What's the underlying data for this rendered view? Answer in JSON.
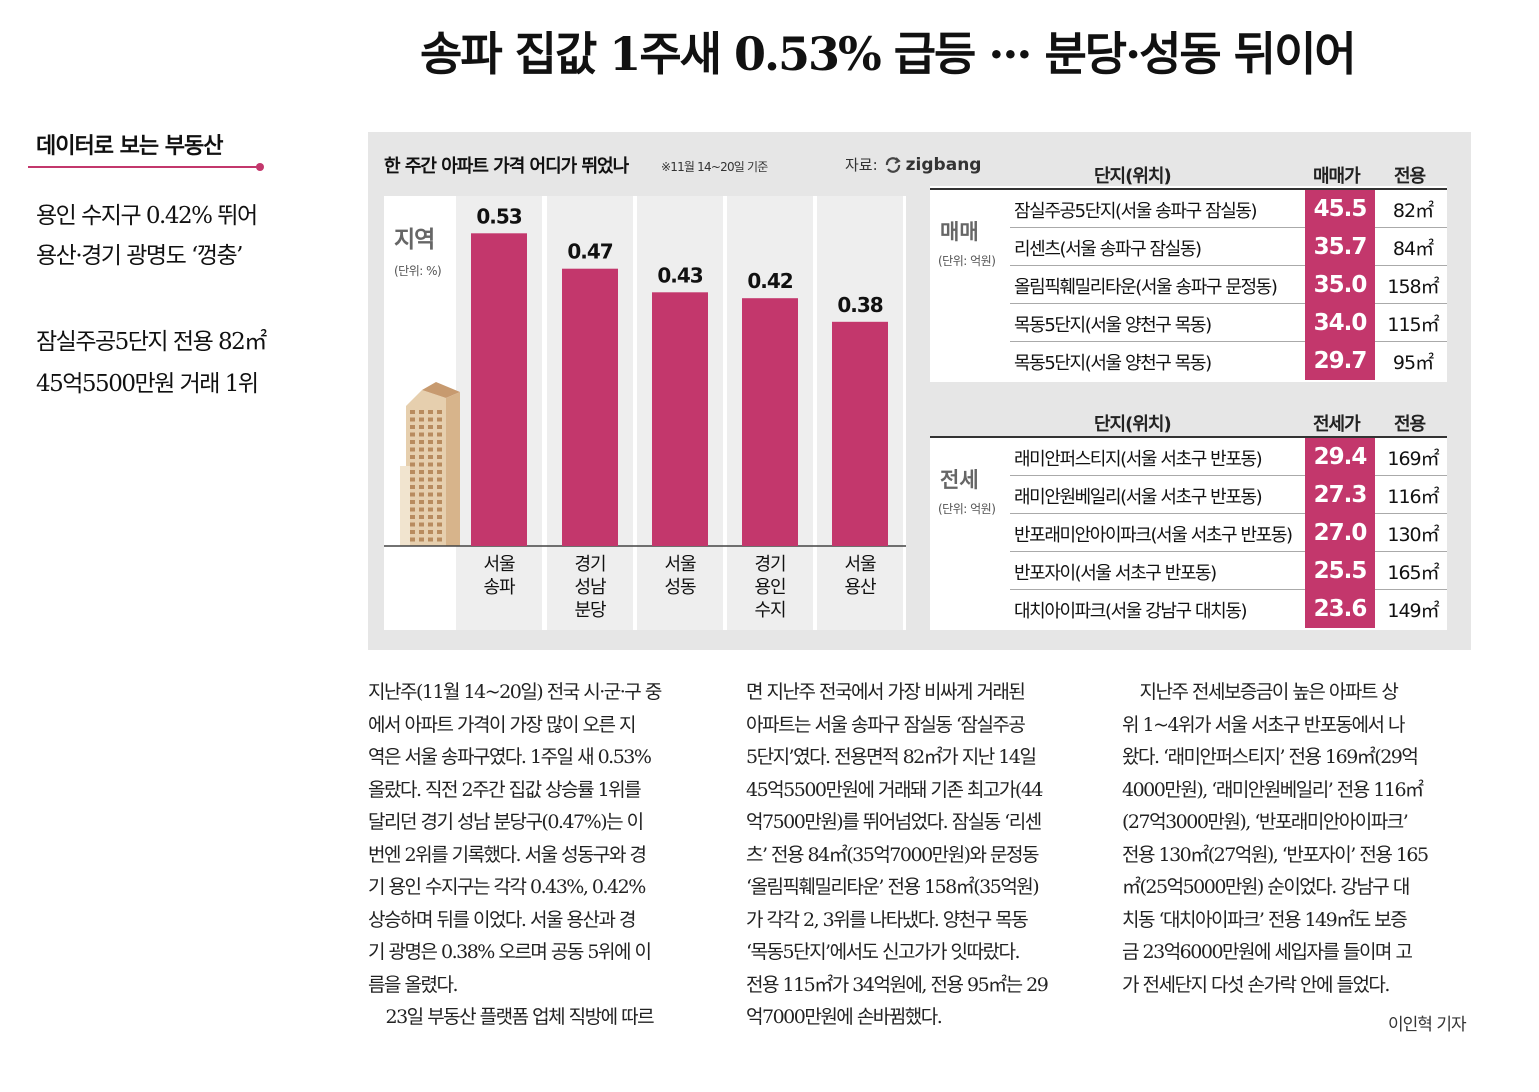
{
  "headline": "송파 집값 1주새 0.53% 급등 ··· 분당·성동 뒤이어",
  "section_tag": "데이터로 보는 부동산",
  "subheads": [
    "용인 수지구 0.42% 뛰어",
    "용산·경기 광명도 ‘껑충’",
    "잠실주공5단지 전용 82㎡",
    "45억5500만원 거래 1위"
  ],
  "graphic": {
    "title": "한 주간 아파트 가격 어디가 뛰었나",
    "date_note": "※11월 14~20일 기준",
    "source_label": "자료:",
    "source_brand": "zigbang"
  },
  "chart_data": {
    "type": "bar",
    "title": "지역",
    "unit": "(단위: %)",
    "categories": [
      "서울\n송파",
      "경기\n성남\n분당",
      "서울\n성동",
      "경기\n용인\n수지",
      "서울\n용산"
    ],
    "values": [
      0.53,
      0.47,
      0.43,
      0.42,
      0.38
    ],
    "value_labels": [
      "0.53",
      "0.47",
      "0.43",
      "0.42",
      "0.38"
    ],
    "bar_color": "#c3376c"
  },
  "sale_table": {
    "category": "매매",
    "unit": "(단위: 억원)",
    "headers": [
      "단지(위치)",
      "매매가",
      "전용"
    ],
    "rows": [
      {
        "name": "잠실주공5단지(서울 송파구 잠실동)",
        "price": "45.5",
        "area": "82㎡"
      },
      {
        "name": "리센츠(서울 송파구 잠실동)",
        "price": "35.7",
        "area": "84㎡"
      },
      {
        "name": "올림픽훼밀리타운(서울 송파구 문정동)",
        "price": "35.0",
        "area": "158㎡"
      },
      {
        "name": "목동5단지(서울 양천구 목동)",
        "price": "34.0",
        "area": "115㎡"
      },
      {
        "name": "목동5단지(서울 양천구 목동)",
        "price": "29.7",
        "area": "95㎡"
      }
    ]
  },
  "jeonse_table": {
    "category": "전세",
    "unit": "(단위: 억원)",
    "headers": [
      "단지(위치)",
      "전세가",
      "전용"
    ],
    "rows": [
      {
        "name": "래미안퍼스티지(서울 서초구 반포동)",
        "price": "29.4",
        "area": "169㎡"
      },
      {
        "name": "래미안원베일리(서울 서초구 반포동)",
        "price": "27.3",
        "area": "116㎡"
      },
      {
        "name": "반포래미안아이파크(서울 서초구 반포동)",
        "price": "27.0",
        "area": "130㎡"
      },
      {
        "name": "반포자이(서울 서초구 반포동)",
        "price": "25.5",
        "area": "165㎡"
      },
      {
        "name": "대치아이파크(서울 강남구 대치동)",
        "price": "23.6",
        "area": "149㎡"
      }
    ]
  },
  "body": {
    "col1": [
      "지난주(11월 14~20일) 전국 시·군·구 중",
      "에서 아파트 가격이 가장 많이 오른 지",
      "역은 서울 송파구였다. 1주일 새 0.53%",
      "올랐다. 직전 2주간 집값 상승률 1위를",
      "달리던 경기 성남 분당구(0.47%)는 이",
      "번엔 2위를 기록했다. 서울 성동구와 경",
      "기 용인 수지구는 각각 0.43%, 0.42%",
      "상승하며 뒤를 이었다. 서울 용산과 경",
      "기 광명은 0.38% 오르며 공동 5위에 이",
      "름을 올렸다.",
      "　23일 부동산 플랫폼 업체 직방에 따르"
    ],
    "col2": [
      "면 지난주 전국에서 가장 비싸게 거래된",
      "아파트는 서울 송파구 잠실동 ‘잠실주공",
      "5단지’였다. 전용면적 82㎡가 지난 14일",
      "45억5500만원에 거래돼 기존 최고가(44",
      "억7500만원)를 뛰어넘었다. 잠실동 ‘리센",
      "츠’ 전용 84㎡(35억7000만원)와 문정동",
      "‘올림픽훼밀리타운’ 전용 158㎡(35억원)",
      "가 각각 2, 3위를 나타냈다. 양천구 목동",
      "‘목동5단지’에서도 신고가가 잇따랐다.",
      "전용 115㎡가 34억원에, 전용 95㎡는 29",
      "억7000만원에 손바뀜했다."
    ],
    "col3": [
      "　지난주 전세보증금이 높은 아파트 상",
      "위 1~4위가 서울 서초구 반포동에서 나",
      "왔다. ‘래미안퍼스티지’ 전용 169㎡(29억",
      "4000만원), ‘래미안원베일리’ 전용 116㎡",
      "(27억3000만원), ‘반포래미안아이파크’",
      "전용 130㎡(27억원), ‘반포자이’ 전용 165",
      "㎡(25억5000만원) 순이었다. 강남구 대",
      "치동 ‘대치아이파크’ 전용 149㎡도 보증",
      "금 23억6000만원에 세입자를 들이며 고",
      "가 전세단지 다섯 손가락 안에 들었다."
    ],
    "byline": "이인혁 기자"
  }
}
